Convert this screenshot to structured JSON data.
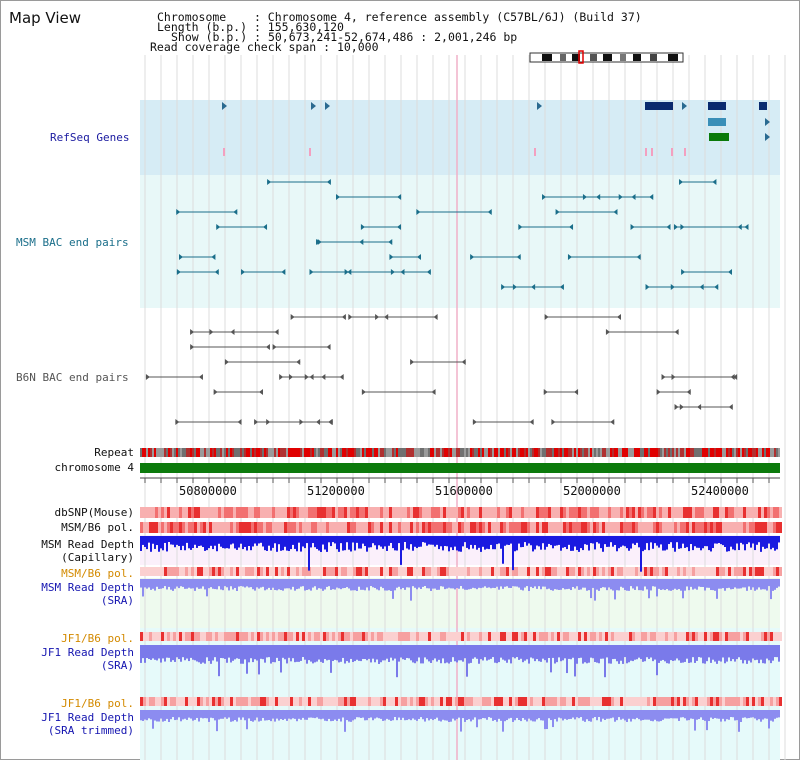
{
  "header": {
    "title": "Map View",
    "info": {
      "chromosome": {
        "label": "Chromosome",
        "value": "Chromosome 4, reference assembly (C57BL/6J) (Build 37)"
      },
      "length": {
        "label": "Length (b.p.)",
        "value": "155,630,120"
      },
      "show": {
        "label": "Show (b.p.)",
        "value": "50,673,241-52,674,486 : 2,001,246 bp"
      },
      "coverage": {
        "label": "Read coverage check span",
        "value": "10,000"
      }
    }
  },
  "tracks": {
    "refseq": "RefSeq Genes",
    "msm_bac": "MSM BAC end pairs",
    "b6n_bac": "B6N BAC end pairs",
    "repeat": "Repeat",
    "chromosome": "chromosome 4",
    "dbsnp": "dbSNP(Mouse)",
    "msm_b6_pol_1": "MSM/B6 pol.",
    "msm_depth_cap_1": "MSM Read Depth",
    "msm_depth_cap_2": "(Capillary)",
    "msm_b6_pol_2": "MSM/B6 pol.",
    "msm_depth_sra_1": "MSM Read Depth",
    "msm_depth_sra_2": "(SRA)",
    "jf1_b6_pol_1": "JF1/B6 pol.",
    "jf1_depth_sra_1": "JF1 Read Depth",
    "jf1_depth_sra_2": "(SRA)",
    "jf1_b6_pol_2": "JF1/B6 pol.",
    "jf1_depth_trim_1": "JF1 Read Depth",
    "jf1_depth_trim_2": "(SRA trimmed)"
  },
  "axis": {
    "ticks": [
      "50800000",
      "51200000",
      "51600000",
      "52000000",
      "52400000"
    ]
  },
  "colors": {
    "refseq_label": "#1a1aa0",
    "msm_label": "#1a6e8a",
    "b6n_label": "#555555",
    "pol_label": "#d38a00",
    "depth_label": "#1515b0",
    "chromosome_bar": "#0b7a0b"
  }
}
